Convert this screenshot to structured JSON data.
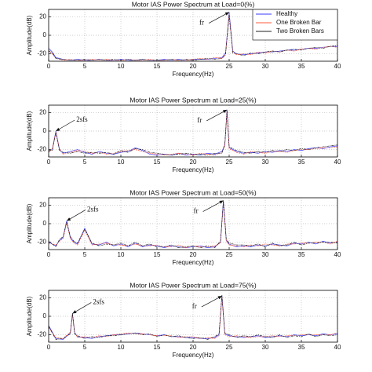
{
  "chart_data": [
    {
      "type": "line",
      "title": "Motor IAS Power Spectrum at Load=0(%)",
      "xlabel": "Frequency(Hz)",
      "ylabel": "Amplitude(dB)",
      "x": [
        0,
        0.5,
        1,
        2,
        3,
        4,
        5,
        6,
        7,
        8,
        9,
        10,
        11,
        12,
        13,
        14,
        15,
        16,
        17,
        18,
        19,
        20,
        21,
        22,
        23,
        24,
        24.5,
        25,
        25.5,
        26,
        27,
        28,
        29,
        30,
        31,
        32,
        33,
        34,
        35,
        36,
        37,
        38,
        39,
        40
      ],
      "series": [
        {
          "name": "Healthy",
          "color": "#3a3aff",
          "values": [
            -14,
            -18,
            -24,
            -26,
            -27,
            -26,
            -27,
            -27,
            -26,
            -27,
            -27,
            -26,
            -27,
            -27,
            -26,
            -27,
            -27,
            -26,
            -27,
            -26,
            -27,
            -26,
            -26,
            -26,
            -25,
            -24,
            -19,
            25,
            -17,
            -20,
            -21,
            -20,
            -19,
            -18,
            -18,
            -17,
            -16,
            -16,
            -15,
            -14,
            -14,
            -13,
            -12,
            -12
          ]
        },
        {
          "name": "One Broken Bar",
          "color": "#ff5a3c",
          "values": [
            -16,
            -20,
            -25,
            -27,
            -26,
            -27,
            -27,
            -26,
            -27,
            -26,
            -27,
            -27,
            -26,
            -27,
            -27,
            -26,
            -27,
            -27,
            -26,
            -27,
            -27,
            -26,
            -25,
            -26,
            -24,
            -25,
            -20,
            23,
            -18,
            -21,
            -20,
            -21,
            -18,
            -19,
            -17,
            -18,
            -16,
            -17,
            -15,
            -14,
            -15,
            -13,
            -12,
            -13
          ]
        },
        {
          "name": "Two Broken Bars",
          "color": "#222222",
          "values": [
            -17,
            -19,
            -25,
            -26,
            -27,
            -27,
            -26,
            -27,
            -26,
            -27,
            -26,
            -27,
            -26,
            -27,
            -26,
            -27,
            -27,
            -27,
            -26,
            -27,
            -26,
            -27,
            -26,
            -25,
            -26,
            -25,
            -21,
            22,
            -19,
            -20,
            -22,
            -19,
            -20,
            -18,
            -17,
            -18,
            -16,
            -15,
            -16,
            -14,
            -13,
            -14,
            -12,
            -11
          ]
        }
      ],
      "annotations": [
        {
          "text": "fr"
        }
      ],
      "xlim": [
        0,
        40
      ],
      "ylim": [
        -28,
        28
      ],
      "xticks": [
        0,
        5,
        10,
        15,
        20,
        25,
        30,
        35,
        40
      ],
      "yticks": [
        -20,
        0,
        20
      ],
      "grid": true,
      "legend": "upper right"
    },
    {
      "type": "line",
      "title": "Motor IAS Power Spectrum at Load=25(%)",
      "xlabel": "Frequency(Hz)",
      "ylabel": "Amplitude(dB)",
      "x": [
        0,
        0.5,
        1,
        1.5,
        2,
        3,
        4,
        5,
        6,
        7,
        8,
        9,
        10,
        11,
        12,
        13,
        14,
        15,
        16,
        17,
        18,
        19,
        20,
        21,
        22,
        23,
        24,
        24.4,
        24.7,
        25,
        26,
        27,
        28,
        29,
        30,
        31,
        32,
        33,
        34,
        35,
        36,
        37,
        38,
        39,
        40
      ],
      "series": [
        {
          "name": "Healthy",
          "color": "#3a3aff",
          "values": [
            -22,
            -20,
            0,
            -20,
            -24,
            -22,
            -20,
            -23,
            -25,
            -22,
            -24,
            -25,
            -23,
            -22,
            -18,
            -21,
            -25,
            -26,
            -25,
            -26,
            -24,
            -26,
            -25,
            -26,
            -24,
            -25,
            -22,
            -15,
            23,
            -18,
            -22,
            -24,
            -23,
            -24,
            -22,
            -23,
            -21,
            -22,
            -20,
            -21,
            -19,
            -18,
            -19,
            -17,
            -16
          ]
        },
        {
          "name": "One Broken Bar",
          "color": "#ff5a3c",
          "values": [
            -23,
            -19,
            -1,
            -19,
            -25,
            -23,
            -21,
            -22,
            -24,
            -23,
            -25,
            -24,
            -22,
            -21,
            -20,
            -22,
            -24,
            -25,
            -26,
            -25,
            -24,
            -25,
            -26,
            -24,
            -25,
            -26,
            -23,
            -16,
            21,
            -19,
            -23,
            -25,
            -22,
            -23,
            -24,
            -22,
            -22,
            -23,
            -21,
            -20,
            -20,
            -19,
            -18,
            -18,
            -17
          ]
        },
        {
          "name": "Two Broken Bars",
          "color": "#222222",
          "values": [
            -21,
            -21,
            -2,
            -21,
            -23,
            -24,
            -22,
            -24,
            -23,
            -24,
            -23,
            -25,
            -21,
            -23,
            -19,
            -20,
            -23,
            -24,
            -25,
            -26,
            -25,
            -24,
            -25,
            -25,
            -26,
            -24,
            -24,
            -14,
            22,
            -17,
            -21,
            -23,
            -24,
            -22,
            -23,
            -21,
            -22,
            -20,
            -21,
            -19,
            -20,
            -18,
            -17,
            -16,
            -15
          ]
        }
      ],
      "annotations": [
        {
          "text": "2sfs"
        },
        {
          "text": "fr"
        }
      ],
      "xlim": [
        0,
        40
      ],
      "ylim": [
        -28,
        28
      ],
      "xticks": [
        0,
        5,
        10,
        15,
        20,
        25,
        30,
        35,
        40
      ],
      "yticks": [
        -20,
        0,
        20
      ],
      "grid": true
    },
    {
      "type": "line",
      "title": "Motor IAS Power Spectrum at Load=50(%)",
      "xlabel": "Frequency(Hz)",
      "ylabel": "Amplitude(dB)",
      "x": [
        0,
        1,
        1.5,
        2,
        2.5,
        3,
        3.5,
        4,
        5,
        6,
        7,
        8,
        9,
        10,
        11,
        12,
        13,
        14,
        15,
        16,
        17,
        18,
        19,
        20,
        21,
        22,
        23,
        23.8,
        24.2,
        24.6,
        25,
        26,
        27,
        28,
        29,
        30,
        31,
        32,
        33,
        34,
        35,
        36,
        37,
        38,
        39,
        40
      ],
      "series": [
        {
          "name": "Healthy",
          "color": "#3a3aff",
          "values": [
            -20,
            -24,
            -18,
            -15,
            3,
            -15,
            -20,
            -22,
            -5,
            -22,
            -23,
            -20,
            -24,
            -22,
            -25,
            -21,
            -25,
            -23,
            -24,
            -26,
            -24,
            -25,
            -26,
            -25,
            -24,
            -26,
            -25,
            -20,
            25,
            -18,
            -22,
            -25,
            -24,
            -25,
            -23,
            -24,
            -22,
            -23,
            -24,
            -21,
            -22,
            -20,
            -22,
            -19,
            -21,
            -20
          ]
        },
        {
          "name": "One Broken Bar",
          "color": "#ff5a3c",
          "values": [
            -21,
            -23,
            -19,
            -16,
            1,
            -16,
            -21,
            -23,
            -7,
            -23,
            -22,
            -21,
            -23,
            -23,
            -24,
            -22,
            -24,
            -24,
            -23,
            -25,
            -25,
            -23,
            -26,
            -24,
            -25,
            -25,
            -24,
            -21,
            23,
            -19,
            -23,
            -24,
            -25,
            -23,
            -24,
            -22,
            -23,
            -24,
            -22,
            -22,
            -21,
            -21,
            -20,
            -20,
            -22,
            -19
          ]
        },
        {
          "name": "Two Broken Bars",
          "color": "#222222",
          "values": [
            -19,
            -25,
            -17,
            -14,
            2,
            -14,
            -19,
            -21,
            -6,
            -21,
            -24,
            -22,
            -23,
            -21,
            -24,
            -20,
            -24,
            -22,
            -25,
            -25,
            -23,
            -26,
            -25,
            -24,
            -26,
            -24,
            -26,
            -19,
            24,
            -17,
            -21,
            -23,
            -23,
            -24,
            -22,
            -25,
            -21,
            -24,
            -23,
            -20,
            -23,
            -21,
            -21,
            -20,
            -20,
            -21
          ]
        }
      ],
      "annotations": [
        {
          "text": "2sfs"
        },
        {
          "text": "fr"
        }
      ],
      "xlim": [
        0,
        40
      ],
      "ylim": [
        -28,
        28
      ],
      "xticks": [
        0,
        5,
        10,
        15,
        20,
        25,
        30,
        35,
        40
      ],
      "yticks": [
        -20,
        0,
        20
      ],
      "grid": true
    },
    {
      "type": "line",
      "title": "Motor IAS Power  Spectrum at Load=75(%)",
      "xlabel": "Frequency(Hz)",
      "ylabel": "Amplitude(dB)",
      "x": [
        0,
        1,
        2,
        3,
        3.3,
        3.6,
        4,
        5,
        6,
        7,
        8,
        9,
        10,
        11,
        12,
        13,
        14,
        15,
        16,
        17,
        18,
        19,
        20,
        21,
        22,
        23,
        23.6,
        24,
        24.4,
        25,
        26,
        27,
        28,
        29,
        30,
        31,
        32,
        33,
        34,
        35,
        36,
        37,
        38,
        39,
        40
      ],
      "series": [
        {
          "name": "Healthy",
          "color": "#3a3aff",
          "values": [
            -10,
            -24,
            -25,
            -18,
            3,
            -18,
            -22,
            -23,
            -24,
            -22,
            -21,
            -20,
            -20,
            -19,
            -18,
            -19,
            -20,
            -21,
            -20,
            -22,
            -22,
            -23,
            -23,
            -24,
            -24,
            -23,
            -20,
            22,
            -19,
            -21,
            -22,
            -23,
            -22,
            -21,
            -23,
            -22,
            -21,
            -22,
            -20,
            -21,
            -20,
            -21,
            -19,
            -20,
            -19
          ]
        },
        {
          "name": "One Broken Bar",
          "color": "#ff5a3c",
          "values": [
            -12,
            -23,
            -24,
            -17,
            2,
            -17,
            -23,
            -22,
            -23,
            -21,
            -22,
            -20,
            -19,
            -18,
            -19,
            -19,
            -20,
            -21,
            -21,
            -21,
            -23,
            -22,
            -22,
            -24,
            -23,
            -24,
            -21,
            21,
            -20,
            -22,
            -21,
            -22,
            -23,
            -22,
            -22,
            -21,
            -22,
            -21,
            -21,
            -20,
            -20,
            -20,
            -20,
            -20,
            -18
          ]
        },
        {
          "name": "Two Broken Bars",
          "color": "#222222",
          "values": [
            -11,
            -25,
            -24,
            -19,
            3,
            -19,
            -21,
            -24,
            -22,
            -23,
            -21,
            -21,
            -20,
            -19,
            -18,
            -20,
            -19,
            -22,
            -20,
            -22,
            -21,
            -23,
            -24,
            -23,
            -25,
            -22,
            -19,
            23,
            -18,
            -20,
            -23,
            -21,
            -22,
            -20,
            -22,
            -23,
            -20,
            -23,
            -21,
            -22,
            -19,
            -22,
            -20,
            -21,
            -20
          ]
        }
      ],
      "annotations": [
        {
          "text": "2sfs"
        },
        {
          "text": "fr"
        }
      ],
      "xlim": [
        0,
        40
      ],
      "ylim": [
        -28,
        28
      ],
      "xticks": [
        0,
        5,
        10,
        15,
        20,
        25,
        30,
        35,
        40
      ],
      "yticks": [
        -20,
        0,
        20
      ],
      "grid": true
    }
  ]
}
